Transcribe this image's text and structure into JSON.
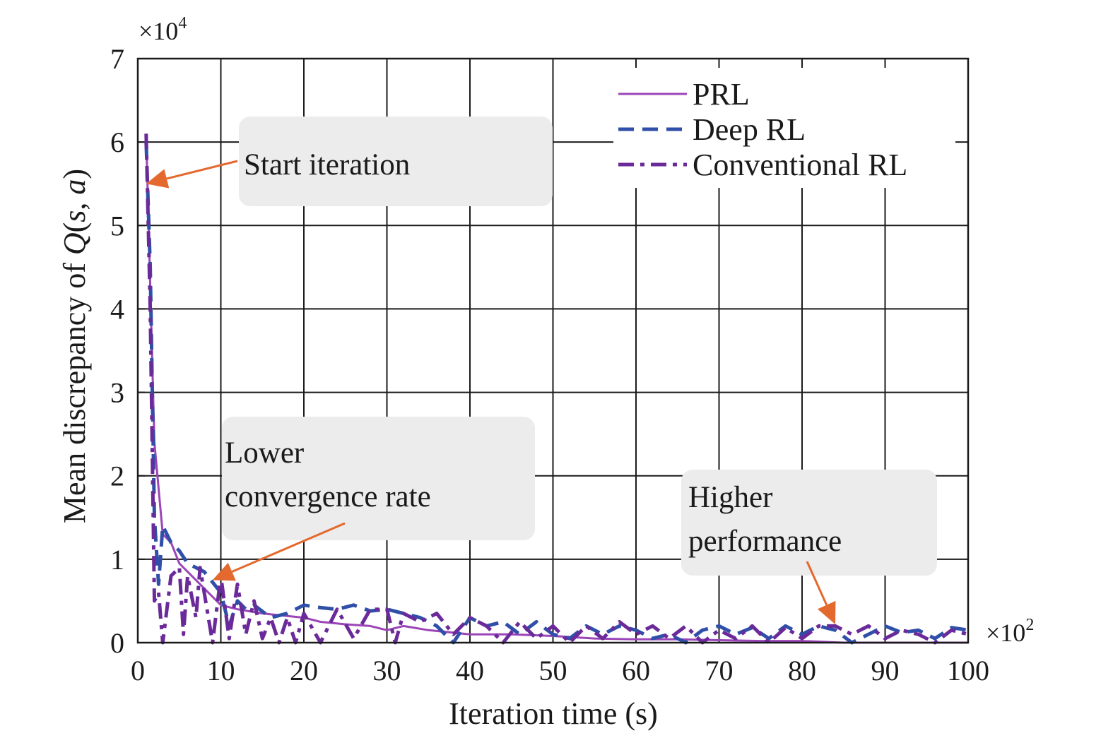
{
  "chart_data": {
    "type": "line",
    "title": "",
    "xlabel": "Iteration time (s)",
    "ylabel_prefix": "Mean discrepancy of ",
    "ylabel_q": "Q",
    "ylabel_open": "(",
    "ylabel_s": "s",
    "ylabel_comma": ", ",
    "ylabel_a": "a",
    "ylabel_close": ")",
    "x_multiplier": "×10",
    "x_multiplier_exp": "2",
    "y_multiplier": "×10",
    "y_multiplier_exp": "4",
    "xlim": [
      0,
      100
    ],
    "ylim": [
      0,
      7
    ],
    "xticks": [
      "0",
      "10",
      "20",
      "30",
      "40",
      "50",
      "60",
      "70",
      "80",
      "90",
      "100"
    ],
    "yticks": [
      "0",
      "1",
      "2",
      "3",
      "4",
      "5",
      "6",
      "7"
    ],
    "grid": true,
    "legend_position": "top-right",
    "series": [
      {
        "name": "PRL",
        "color": "#9b45b8",
        "style": "solid",
        "x": [
          1,
          2,
          3,
          4,
          5,
          6,
          8,
          10,
          12,
          15,
          18,
          20,
          22,
          25,
          28,
          30,
          32,
          35,
          40,
          45,
          50,
          55,
          60,
          65,
          70,
          75,
          80,
          85,
          90,
          95,
          100
        ],
        "y": [
          6.1,
          2.4,
          1.3,
          1.2,
          0.95,
          0.85,
          0.65,
          0.45,
          0.4,
          0.35,
          0.32,
          0.3,
          0.25,
          0.22,
          0.2,
          0.15,
          0.2,
          0.15,
          0.1,
          0.1,
          0.08,
          0.05,
          0.04,
          0.04,
          0.03,
          0.02,
          0.02,
          0.0,
          0.0,
          0.0,
          0.0
        ]
      },
      {
        "name": "Deep RL",
        "color": "#2f4fa8",
        "style": "dashed",
        "x": [
          1,
          1.5,
          2,
          2.5,
          3,
          3.5,
          4,
          5,
          6,
          8,
          10,
          11,
          12,
          13,
          14,
          16,
          18,
          20,
          22,
          24,
          26,
          28,
          30,
          32,
          34,
          36,
          38,
          40,
          42,
          44,
          46,
          48,
          50,
          52,
          54,
          56,
          58,
          60,
          62,
          64,
          66,
          68,
          70,
          72,
          74,
          76,
          78,
          80,
          82,
          84,
          86,
          88,
          90,
          92,
          94,
          96,
          98,
          100
        ],
        "y": [
          6.0,
          4.5,
          1.5,
          0.7,
          1.4,
          1.3,
          1.2,
          1.1,
          0.95,
          0.85,
          0.6,
          0.2,
          0.5,
          0.4,
          0.45,
          0.3,
          0.35,
          0.45,
          0.42,
          0.4,
          0.45,
          0.38,
          0.4,
          0.35,
          0.3,
          0.2,
          0.0,
          0.3,
          0.2,
          0.25,
          0.1,
          0.25,
          0.1,
          0.05,
          0.2,
          0.1,
          0.2,
          0.15,
          0.05,
          0.1,
          0.0,
          0.15,
          0.2,
          0.1,
          0.18,
          0.05,
          0.2,
          0.1,
          0.2,
          0.15,
          0.0,
          0.1,
          0.2,
          0.12,
          0.15,
          0.05,
          0.18,
          0.15
        ]
      },
      {
        "name": "Conventional RL",
        "color": "#6b2a99",
        "style": "dashdot",
        "x": [
          1,
          1.5,
          2,
          2.5,
          3,
          4,
          5,
          5.5,
          6,
          7,
          7.5,
          8,
          9,
          10,
          11,
          12,
          13,
          14,
          15,
          16,
          17,
          18,
          19,
          20,
          22,
          24,
          26,
          28,
          30,
          31,
          32,
          34,
          36,
          38,
          40,
          42,
          44,
          46,
          48,
          50,
          52,
          54,
          56,
          58,
          60,
          62,
          64,
          66,
          68,
          70,
          72,
          74,
          76,
          78,
          80,
          82,
          84,
          86,
          88,
          90,
          92,
          94,
          96,
          98,
          100
        ],
        "y": [
          6.1,
          4.0,
          0.5,
          0.6,
          0.0,
          0.8,
          0.9,
          0.1,
          0.8,
          0.3,
          0.9,
          0.6,
          0.0,
          0.8,
          0.05,
          0.7,
          0.1,
          0.5,
          0.05,
          0.3,
          0.0,
          0.3,
          0.0,
          0.35,
          0.0,
          0.4,
          0.05,
          0.4,
          0.4,
          0.0,
          0.35,
          0.25,
          0.35,
          0.1,
          0.3,
          0.2,
          0.0,
          0.25,
          0.05,
          0.2,
          0.0,
          0.2,
          0.05,
          0.25,
          0.1,
          0.2,
          0.05,
          0.2,
          0.0,
          0.15,
          0.05,
          0.2,
          0.0,
          0.18,
          0.05,
          0.2,
          0.2,
          0.1,
          0.2,
          0.05,
          0.15,
          0.1,
          0.0,
          0.15,
          0.1
        ]
      }
    ],
    "annotations": [
      {
        "lines": [
          "Start iteration"
        ],
        "target": [
          1,
          5.5
        ]
      },
      {
        "lines": [
          "Lower",
          "convergence rate"
        ],
        "target": [
          9,
          0.75
        ]
      },
      {
        "lines": [
          "Higher",
          "performance"
        ],
        "target": [
          84,
          0.22
        ]
      }
    ]
  }
}
